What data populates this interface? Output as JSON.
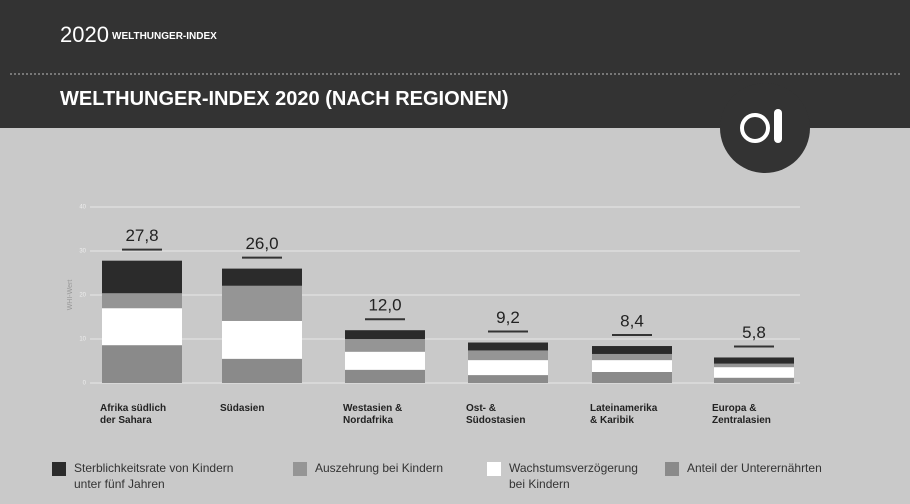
{
  "header": {
    "year": "2020",
    "brand": "WELTHUNGER-INDEX"
  },
  "chart_data": {
    "type": "stacked-bar",
    "title": "WELTHUNGER-INDEX 2020 (NACH REGIONEN)",
    "y_label": "WHI-Wert",
    "categories": [
      "Afrika südlich\nder Sahara",
      "Südasien",
      "Westasien &\nNordafrika",
      "Ost- &\nSüdostasien",
      "Lateinamerika\n& Karibik",
      "Europa &\nZentralasien"
    ],
    "totals": [
      27.8,
      26.0,
      12.0,
      9.2,
      8.4,
      5.8
    ],
    "total_labels": [
      "27,8",
      "26,0",
      "12,0",
      "9,2",
      "8,4",
      "5,8"
    ],
    "series": [
      {
        "name": "Sterblichkeitsrate von Kindern\nunter fünf Jahren",
        "color": "#2b2b2b",
        "values": [
          7.4,
          3.9,
          2.0,
          1.8,
          1.8,
          1.4
        ]
      },
      {
        "name": "Auszehrung bei Kindern",
        "color": "#959595",
        "values": [
          3.4,
          8.0,
          2.9,
          2.2,
          1.4,
          0.8
        ]
      },
      {
        "name": "Wachstumsverzögerung\nbei Kindern",
        "color": "#ffffff",
        "values": [
          8.4,
          8.6,
          4.1,
          3.4,
          2.7,
          2.4
        ]
      },
      {
        "name": "Anteil der Unterernährten",
        "color": "#8a8a8a",
        "values": [
          8.6,
          5.5,
          3.0,
          1.8,
          2.5,
          1.2
        ]
      }
    ],
    "ylim": [
      0,
      40
    ],
    "yticks": [
      0,
      10,
      20,
      30,
      40
    ],
    "grid": true
  }
}
